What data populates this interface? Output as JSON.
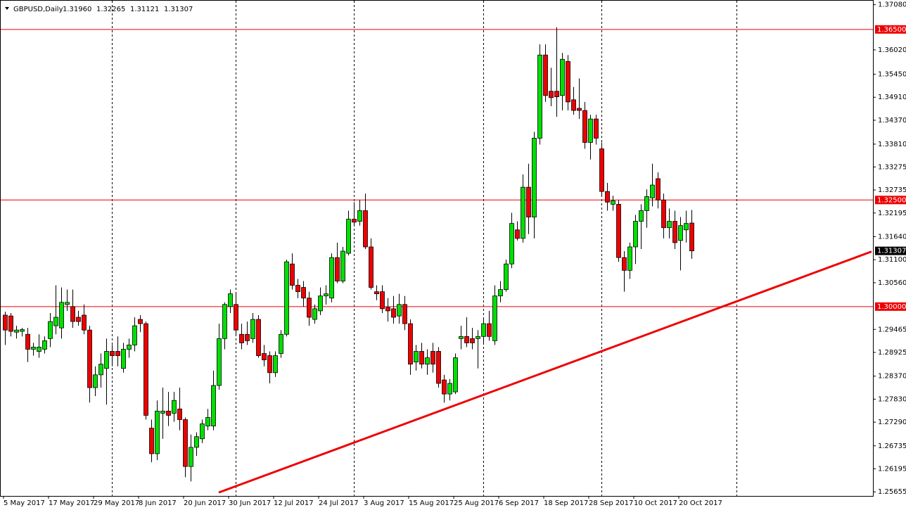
{
  "chart_data": {
    "type": "candlestick",
    "header": {
      "symbol": "GBPUSD,Daily",
      "ohlc_labels": [
        "1.31960",
        "1.32265",
        "1.31121",
        "1.31307"
      ]
    },
    "categories": [
      "5 May 2017",
      null,
      null,
      null,
      null,
      null,
      null,
      null,
      "17 May 2017",
      null,
      null,
      null,
      null,
      null,
      null,
      null,
      "29 May 2017",
      null,
      null,
      null,
      null,
      null,
      null,
      null,
      "8 Jun 2017",
      null,
      null,
      null,
      null,
      null,
      null,
      null,
      "20 Jun 2017",
      null,
      null,
      null,
      null,
      null,
      null,
      null,
      "30 Jun 2017",
      null,
      null,
      null,
      null,
      null,
      null,
      null,
      "12 Jul 2017",
      null,
      null,
      null,
      null,
      null,
      null,
      null,
      "24 Jul 2017",
      null,
      null,
      null,
      null,
      null,
      null,
      null,
      "3 Aug 2017",
      null,
      null,
      null,
      null,
      null,
      null,
      null,
      "15 Aug 2017",
      null,
      null,
      null,
      null,
      null,
      null,
      null,
      "25 Aug 2017",
      null,
      null,
      null,
      null,
      null,
      null,
      null,
      "6 Sep 2017",
      null,
      null,
      null,
      null,
      null,
      null,
      null,
      "18 Sep 2017",
      null,
      null,
      null,
      null,
      null,
      null,
      null,
      "28 Sep 2017",
      null,
      null,
      null,
      null,
      null,
      null,
      null,
      "10 Oct 2017",
      null,
      null,
      null,
      null,
      null,
      null,
      null,
      "20 Oct 2017",
      null,
      null
    ],
    "open": [
      1.298,
      1.2978,
      1.294,
      1.2942,
      1.2935,
      1.29,
      1.2895,
      1.29,
      1.2925,
      1.2955,
      1.295,
      1.3005,
      1.3,
      1.2975,
      1.298,
      1.2945,
      1.281,
      1.284,
      1.2855,
      1.2895,
      1.2895,
      1.2855,
      1.29,
      1.291,
      1.297,
      1.296,
      1.2715,
      1.2655,
      1.275,
      1.2755,
      1.275,
      1.276,
      1.2735,
      1.2625,
      1.267,
      1.269,
      1.272,
      1.272,
      1.2815,
      1.2925,
      1.3,
      1.3005,
      1.2935,
      1.2935,
      1.2925,
      1.297,
      1.289,
      1.2885,
      1.2845,
      1.289,
      1.2935,
      1.31,
      1.305,
      1.3045,
      1.302,
      1.297,
      1.299,
      1.3025,
      1.302,
      1.3115,
      1.306,
      1.3125,
      1.3205,
      1.32,
      1.3225,
      1.314,
      1.3035,
      1.3035,
      1.2998,
      1.2995,
      1.2978,
      1.3005,
      1.296,
      1.287,
      1.2895,
      1.2865,
      1.2895,
      1.2895,
      1.2828,
      1.2795,
      1.28,
      1.2925,
      1.293,
      1.2925,
      1.2925,
      1.293,
      1.296,
      1.292,
      1.3025,
      1.304,
      1.31,
      1.318,
      1.316,
      1.328,
      1.321,
      1.3395,
      1.359,
      1.3505,
      1.3505,
      1.3495,
      1.3575,
      1.3485,
      1.3465,
      1.346,
      1.3385,
      1.344,
      1.337,
      1.327,
      1.324,
      1.324,
      1.3115,
      1.3085,
      1.314,
      1.32,
      1.3225,
      1.3255,
      1.33,
      1.325,
      1.3185,
      1.32,
      1.3155,
      1.318,
      1.3196
    ],
    "high": [
      1.2988,
      1.2985,
      1.2955,
      1.295,
      1.295,
      1.2915,
      1.2935,
      1.293,
      1.2985,
      1.305,
      1.3045,
      1.304,
      1.304,
      1.299,
      1.3005,
      1.2955,
      1.286,
      1.289,
      1.2925,
      1.291,
      1.293,
      1.2915,
      1.2925,
      1.2975,
      1.298,
      1.2965,
      1.2735,
      1.278,
      1.281,
      1.28,
      1.28,
      1.281,
      1.274,
      1.27,
      1.2705,
      1.2735,
      1.276,
      1.285,
      1.296,
      1.301,
      1.304,
      1.303,
      1.296,
      1.2965,
      1.2985,
      1.298,
      1.291,
      1.2895,
      1.2895,
      1.2945,
      1.311,
      1.3125,
      1.3065,
      1.306,
      1.3035,
      1.3005,
      1.3045,
      1.305,
      1.3125,
      1.315,
      1.314,
      1.3225,
      1.3245,
      1.325,
      1.3265,
      1.316,
      1.305,
      1.305,
      1.302,
      1.3025,
      1.303,
      1.3025,
      1.297,
      1.291,
      1.2915,
      1.29,
      1.2915,
      1.2905,
      1.284,
      1.283,
      1.289,
      1.2955,
      1.2975,
      1.295,
      1.2945,
      1.2975,
      1.299,
      1.305,
      1.306,
      1.311,
      1.322,
      1.32,
      1.331,
      1.3335,
      1.341,
      1.3615,
      1.3615,
      1.356,
      1.3655,
      1.3595,
      1.359,
      1.3515,
      1.3535,
      1.348,
      1.345,
      1.345,
      1.3385,
      1.329,
      1.326,
      1.325,
      1.313,
      1.315,
      1.3215,
      1.324,
      1.3275,
      1.3335,
      1.3315,
      1.3265,
      1.323,
      1.3225,
      1.321,
      1.3225,
      1.32265
    ],
    "low": [
      1.291,
      1.293,
      1.2925,
      1.293,
      1.287,
      1.2885,
      1.288,
      1.289,
      1.2905,
      1.2935,
      1.2925,
      1.299,
      1.295,
      1.2955,
      1.2935,
      1.2775,
      1.279,
      1.281,
      1.277,
      1.286,
      1.286,
      1.2845,
      1.288,
      1.2895,
      1.294,
      1.2735,
      1.2635,
      1.264,
      1.269,
      1.272,
      1.273,
      1.271,
      1.26,
      1.259,
      1.265,
      1.268,
      1.271,
      1.271,
      1.2805,
      1.29,
      1.2985,
      1.2935,
      1.29,
      1.291,
      1.2915,
      1.288,
      1.286,
      1.282,
      1.2835,
      1.288,
      1.293,
      1.304,
      1.302,
      1.3,
      1.2955,
      1.296,
      1.298,
      1.3005,
      1.301,
      1.3055,
      1.3055,
      1.312,
      1.319,
      1.319,
      1.3135,
      1.304,
      1.3015,
      1.2985,
      1.2965,
      1.296,
      1.296,
      1.2945,
      1.284,
      1.285,
      1.2855,
      1.284,
      1.2845,
      1.281,
      1.2775,
      1.278,
      1.2795,
      1.29,
      1.2905,
      1.29,
      1.2855,
      1.2915,
      1.292,
      1.291,
      1.301,
      1.3035,
      1.309,
      1.3155,
      1.315,
      1.317,
      1.316,
      1.338,
      1.348,
      1.347,
      1.3445,
      1.346,
      1.346,
      1.345,
      1.344,
      1.337,
      1.3345,
      1.338,
      1.326,
      1.3225,
      1.3225,
      1.3105,
      1.3035,
      1.3065,
      1.31,
      1.3135,
      1.3185,
      1.3235,
      1.323,
      1.316,
      1.316,
      1.3135,
      1.3085,
      1.315,
      1.31121
    ],
    "close": [
      1.2945,
      1.2942,
      1.2945,
      1.2946,
      1.29,
      1.2905,
      1.2905,
      1.292,
      1.2965,
      1.2975,
      1.301,
      1.301,
      1.2965,
      1.2965,
      1.2945,
      1.281,
      1.284,
      1.2865,
      1.2895,
      1.2885,
      1.2885,
      1.29,
      1.291,
      1.2955,
      1.296,
      1.2745,
      1.2655,
      1.2755,
      1.2755,
      1.2745,
      1.278,
      1.2735,
      1.2625,
      1.267,
      1.2695,
      1.2725,
      1.274,
      1.2815,
      1.2925,
      1.3005,
      1.303,
      1.2945,
      1.2915,
      1.292,
      1.297,
      1.2885,
      1.2875,
      1.2845,
      1.2885,
      1.2935,
      1.3105,
      1.305,
      1.3035,
      1.302,
      1.2975,
      1.2995,
      1.3025,
      1.303,
      1.3115,
      1.306,
      1.313,
      1.3205,
      1.3198,
      1.3225,
      1.314,
      1.3045,
      1.303,
      1.2995,
      1.299,
      1.2975,
      1.3005,
      1.296,
      1.2865,
      1.2895,
      1.2865,
      1.288,
      1.2865,
      1.282,
      1.2795,
      1.282,
      1.288,
      1.293,
      1.2915,
      1.2915,
      1.293,
      1.296,
      1.293,
      1.3025,
      1.304,
      1.31,
      1.3195,
      1.316,
      1.328,
      1.321,
      1.3395,
      1.359,
      1.3495,
      1.349,
      1.3492,
      1.358,
      1.348,
      1.346,
      1.346,
      1.3385,
      1.344,
      1.3395,
      1.327,
      1.3245,
      1.3248,
      1.3115,
      1.3085,
      1.314,
      1.32,
      1.3225,
      1.3258,
      1.3285,
      1.325,
      1.3185,
      1.32,
      1.315,
      1.319,
      1.3195,
      1.31307
    ],
    "up_color": "#00e000",
    "down_color": "#ee0000",
    "ylim": [
      1.2556,
      1.3719
    ],
    "yticks": [
      {
        "value": 1.3708,
        "label": "1.37080"
      },
      {
        "value": 1.3602,
        "label": "1.36020"
      },
      {
        "value": 1.3545,
        "label": "1.35450"
      },
      {
        "value": 1.3491,
        "label": "1.34910"
      },
      {
        "value": 1.3437,
        "label": "1.34370"
      },
      {
        "value": 1.3381,
        "label": "1.33810"
      },
      {
        "value": 1.33275,
        "label": "1.33275"
      },
      {
        "value": 1.32735,
        "label": "1.32735"
      },
      {
        "value": 1.32195,
        "label": "1.32195"
      },
      {
        "value": 1.3164,
        "label": "1.31640"
      },
      {
        "value": 1.311,
        "label": "1.31100"
      },
      {
        "value": 1.3056,
        "label": "1.30560"
      },
      {
        "value": 1.29465,
        "label": "1.29465"
      },
      {
        "value": 1.28925,
        "label": "1.28925"
      },
      {
        "value": 1.2837,
        "label": "1.28370"
      },
      {
        "value": 1.2783,
        "label": "1.27830"
      },
      {
        "value": 1.2729,
        "label": "1.27290"
      },
      {
        "value": 1.26735,
        "label": "1.26735"
      },
      {
        "value": 1.26195,
        "label": "1.26195"
      },
      {
        "value": 1.25655,
        "label": "1.25655"
      }
    ],
    "xgrid": [
      19,
      41,
      62,
      85,
      106,
      130
    ],
    "hlines": [
      {
        "value": 1.365,
        "label": "1.36500"
      },
      {
        "value": 1.325,
        "label": "1.32500"
      },
      {
        "value": 1.3,
        "label": "1.30000"
      }
    ],
    "hline_color": "#ee0000",
    "price_label": {
      "value": 1.31307,
      "label": "1.31307"
    },
    "trendline": {
      "x": [
        38,
        154
      ],
      "y": [
        1.2564,
        1.3129
      ],
      "color": "#ee0000"
    }
  }
}
